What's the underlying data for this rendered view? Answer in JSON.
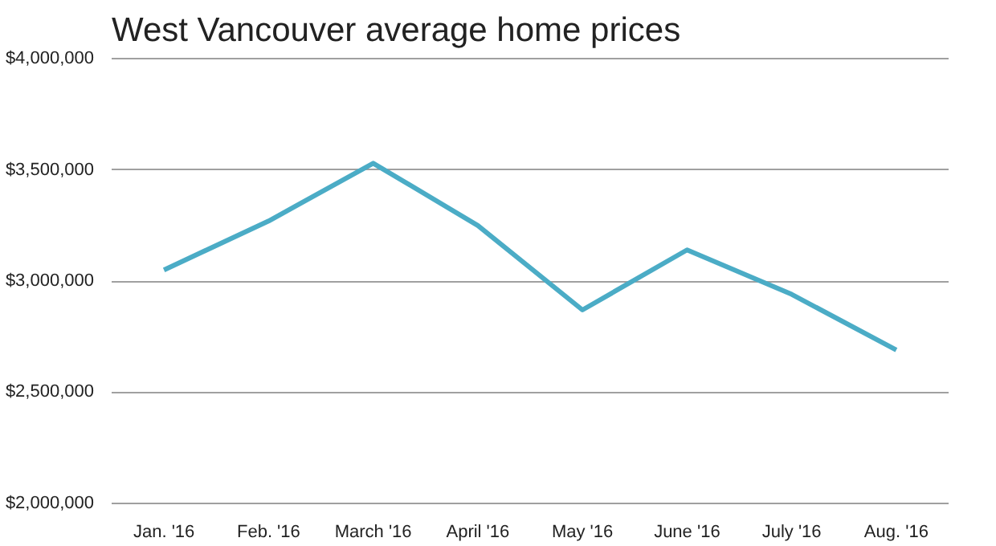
{
  "chart_data": {
    "type": "line",
    "title": "West Vancouver average home prices",
    "categories": [
      "Jan. '16",
      "Feb. '16",
      "March '16",
      "April '16",
      "May '16",
      "June '16",
      "July '16",
      "Aug. '16"
    ],
    "series": [
      {
        "color": "#4bacc6",
        "values": [
          3050000,
          3270000,
          3530000,
          3250000,
          2870000,
          3140000,
          2940000,
          2690000
        ]
      }
    ],
    "ylim": [
      2000000,
      4000000
    ],
    "yticks": [
      {
        "value": 2000000,
        "label": "$2,000,000"
      },
      {
        "value": 2500000,
        "label": "$2,500,000"
      },
      {
        "value": 3000000,
        "label": "$3,000,000"
      },
      {
        "value": 3500000,
        "label": "$3,500,000"
      },
      {
        "value": 4000000,
        "label": "$4,000,000"
      }
    ],
    "grid": "y",
    "marker": "none",
    "line_style": "solid"
  }
}
